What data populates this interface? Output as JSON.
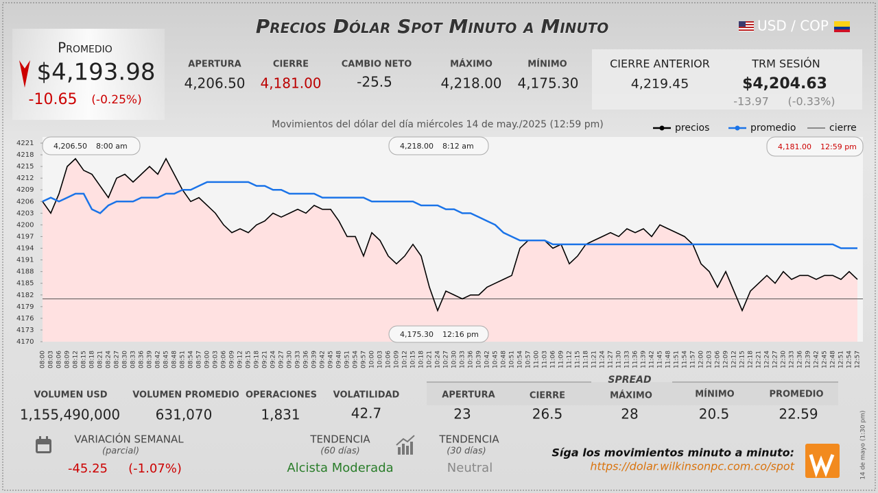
{
  "header": {
    "title": "Precios Dólar Spot Minuto a Minuto",
    "pair": "USD / COP"
  },
  "promedio": {
    "label": "Promedio",
    "value": "$4,193.98",
    "change": "-10.65",
    "change_pct": "(-0.25%)"
  },
  "session": [
    {
      "label": "APERTURA",
      "value": "4,206.50"
    },
    {
      "label": "CIERRE",
      "value": "4,181.00"
    },
    {
      "label": "CAMBIO NETO",
      "value": "-25.5"
    },
    {
      "label": "MÁXIMO",
      "value": "4,218.00"
    },
    {
      "label": "MÍNIMO",
      "value": "4,175.30"
    }
  ],
  "cierre_anterior": {
    "label": "CIERRE ANTERIOR",
    "value": "4,219.45"
  },
  "trm": {
    "label": "TRM SESIÓN",
    "value": "$4,204.63",
    "change": "-13.97",
    "change_pct": "(-0.33%)"
  },
  "chart_data": {
    "type": "line",
    "subtitle": "Movimientos del dólar del día miércoles 14 de may./2025 (12:59 pm)",
    "categories": [
      "08:00",
      "08:03",
      "08:06",
      "08:09",
      "08:12",
      "08:15",
      "08:18",
      "08:21",
      "08:24",
      "08:27",
      "08:30",
      "08:33",
      "08:36",
      "08:39",
      "08:42",
      "08:45",
      "08:48",
      "08:51",
      "08:54",
      "08:57",
      "09:00",
      "09:03",
      "09:06",
      "09:09",
      "09:12",
      "09:15",
      "09:18",
      "09:21",
      "09:24",
      "09:27",
      "09:30",
      "09:33",
      "09:36",
      "09:39",
      "09:42",
      "09:45",
      "09:48",
      "09:51",
      "09:54",
      "09:57",
      "10:00",
      "10:03",
      "10:06",
      "10:09",
      "10:12",
      "10:15",
      "10:18",
      "10:21",
      "10:24",
      "10:27",
      "10:30",
      "10:33",
      "10:36",
      "10:39",
      "10:42",
      "10:45",
      "10:48",
      "10:51",
      "10:54",
      "10:57",
      "11:00",
      "11:03",
      "11:06",
      "11:09",
      "11:12",
      "11:15",
      "11:18",
      "11:21",
      "11:24",
      "11:27",
      "11:30",
      "11:33",
      "11:36",
      "11:39",
      "11:42",
      "11:45",
      "11:48",
      "11:51",
      "11:54",
      "11:57",
      "12:00",
      "12:03",
      "12:06",
      "12:09",
      "12:12",
      "12:15",
      "12:18",
      "12:21",
      "12:24",
      "12:27",
      "12:30",
      "12:33",
      "12:36",
      "12:39",
      "12:42",
      "12:45",
      "12:48",
      "12:51",
      "12:54",
      "12:57"
    ],
    "series": [
      {
        "name": "precios",
        "color": "#000000",
        "fill": "#ffe1e1",
        "values": [
          4206,
          4203,
          4208,
          4215,
          4217,
          4214,
          4213,
          4210,
          4207,
          4212,
          4213,
          4211,
          4213,
          4215,
          4213,
          4217,
          4213,
          4209,
          4206,
          4207,
          4205,
          4203,
          4200,
          4198,
          4199,
          4198,
          4200,
          4201,
          4203,
          4202,
          4203,
          4204,
          4203,
          4205,
          4204,
          4204,
          4201,
          4197,
          4197,
          4192,
          4198,
          4196,
          4192,
          4190,
          4192,
          4195,
          4192,
          4184,
          4178,
          4183,
          4182,
          4181,
          4182,
          4182,
          4184,
          4185,
          4186,
          4187,
          4194,
          4196,
          4196,
          4196,
          4194,
          4195,
          4190,
          4192,
          4195,
          4196,
          4197,
          4198,
          4197,
          4199,
          4198,
          4199,
          4197,
          4200,
          4199,
          4198,
          4197,
          4195,
          4190,
          4188,
          4184,
          4188,
          4183,
          4178,
          4183,
          4185,
          4187,
          4185,
          4188,
          4186,
          4187,
          4187,
          4186,
          4187,
          4187,
          4186,
          4188,
          4186
        ]
      },
      {
        "name": "promedio",
        "color": "#1a73e8",
        "values": [
          4206,
          4207,
          4206,
          4207,
          4208,
          4208,
          4204,
          4203,
          4205,
          4206,
          4206,
          4206,
          4207,
          4207,
          4207,
          4208,
          4208,
          4209,
          4209,
          4210,
          4211,
          4211,
          4211,
          4211,
          4211,
          4211,
          4210,
          4210,
          4209,
          4209,
          4208,
          4208,
          4208,
          4208,
          4207,
          4207,
          4207,
          4207,
          4207,
          4207,
          4206,
          4206,
          4206,
          4206,
          4206,
          4206,
          4205,
          4205,
          4205,
          4204,
          4204,
          4203,
          4203,
          4202,
          4201,
          4200,
          4198,
          4197,
          4196,
          4196,
          4196,
          4196,
          4195,
          4195,
          4195,
          4195,
          4195,
          4195,
          4195,
          4195,
          4195,
          4195,
          4195,
          4195,
          4195,
          4195,
          4195,
          4195,
          4195,
          4195,
          4195,
          4195,
          4195,
          4195,
          4195,
          4195,
          4195,
          4195,
          4195,
          4195,
          4195,
          4195,
          4195,
          4195,
          4195,
          4195,
          4195,
          4194,
          4194,
          4194
        ]
      }
    ],
    "reference_line": {
      "name": "cierre",
      "value": 4181,
      "color": "#555555"
    },
    "annotations": [
      {
        "value": "4,206.50",
        "time": "8:00 am"
      },
      {
        "value": "4,218.00",
        "time": "8:12 am"
      },
      {
        "value": "4,181.00",
        "time": "12:59 pm"
      },
      {
        "value": "4,175.30",
        "time": "12:16 pm"
      }
    ],
    "ylim": [
      4170,
      4221
    ],
    "yticks": [
      4170,
      4173,
      4176,
      4179,
      4182,
      4185,
      4188,
      4191,
      4194,
      4197,
      4200,
      4203,
      4206,
      4209,
      4212,
      4215,
      4218,
      4221
    ]
  },
  "volume": [
    {
      "label": "VOLUMEN USD",
      "value": "1,155,490,000"
    },
    {
      "label": "VOLUMEN PROMEDIO",
      "value": "631,070"
    },
    {
      "label": "OPERACIONES",
      "value": "1,831"
    },
    {
      "label": "VOLATILIDAD",
      "value": "42.7"
    }
  ],
  "spread": {
    "title": "SPREAD",
    "items": [
      {
        "label": "APERTURA",
        "value": "23"
      },
      {
        "label": "CIERRE",
        "value": "26.5"
      },
      {
        "label": "MÁXIMO",
        "value": "28"
      },
      {
        "label": "MÍNIMO",
        "value": "20.5"
      },
      {
        "label": "PROMEDIO",
        "value": "22.59"
      }
    ]
  },
  "variacion": {
    "label": "VARIACIÓN SEMANAL",
    "note": "(parcial)",
    "change": "-45.25",
    "change_pct": "(-1.07%)"
  },
  "tendencia": [
    {
      "label": "TENDENCIA",
      "note": "(60 días)",
      "value": "Alcista Moderada"
    },
    {
      "label": "TENDENCIA",
      "note": "(30 días)",
      "value": "Neutral"
    }
  ],
  "footer": {
    "text": "Síga los movimientos minuto a minuto:",
    "url": "https://dolar.wilkinsonpc.com.co/spot"
  },
  "side_note": "14 de mayo (1:30 pm)"
}
